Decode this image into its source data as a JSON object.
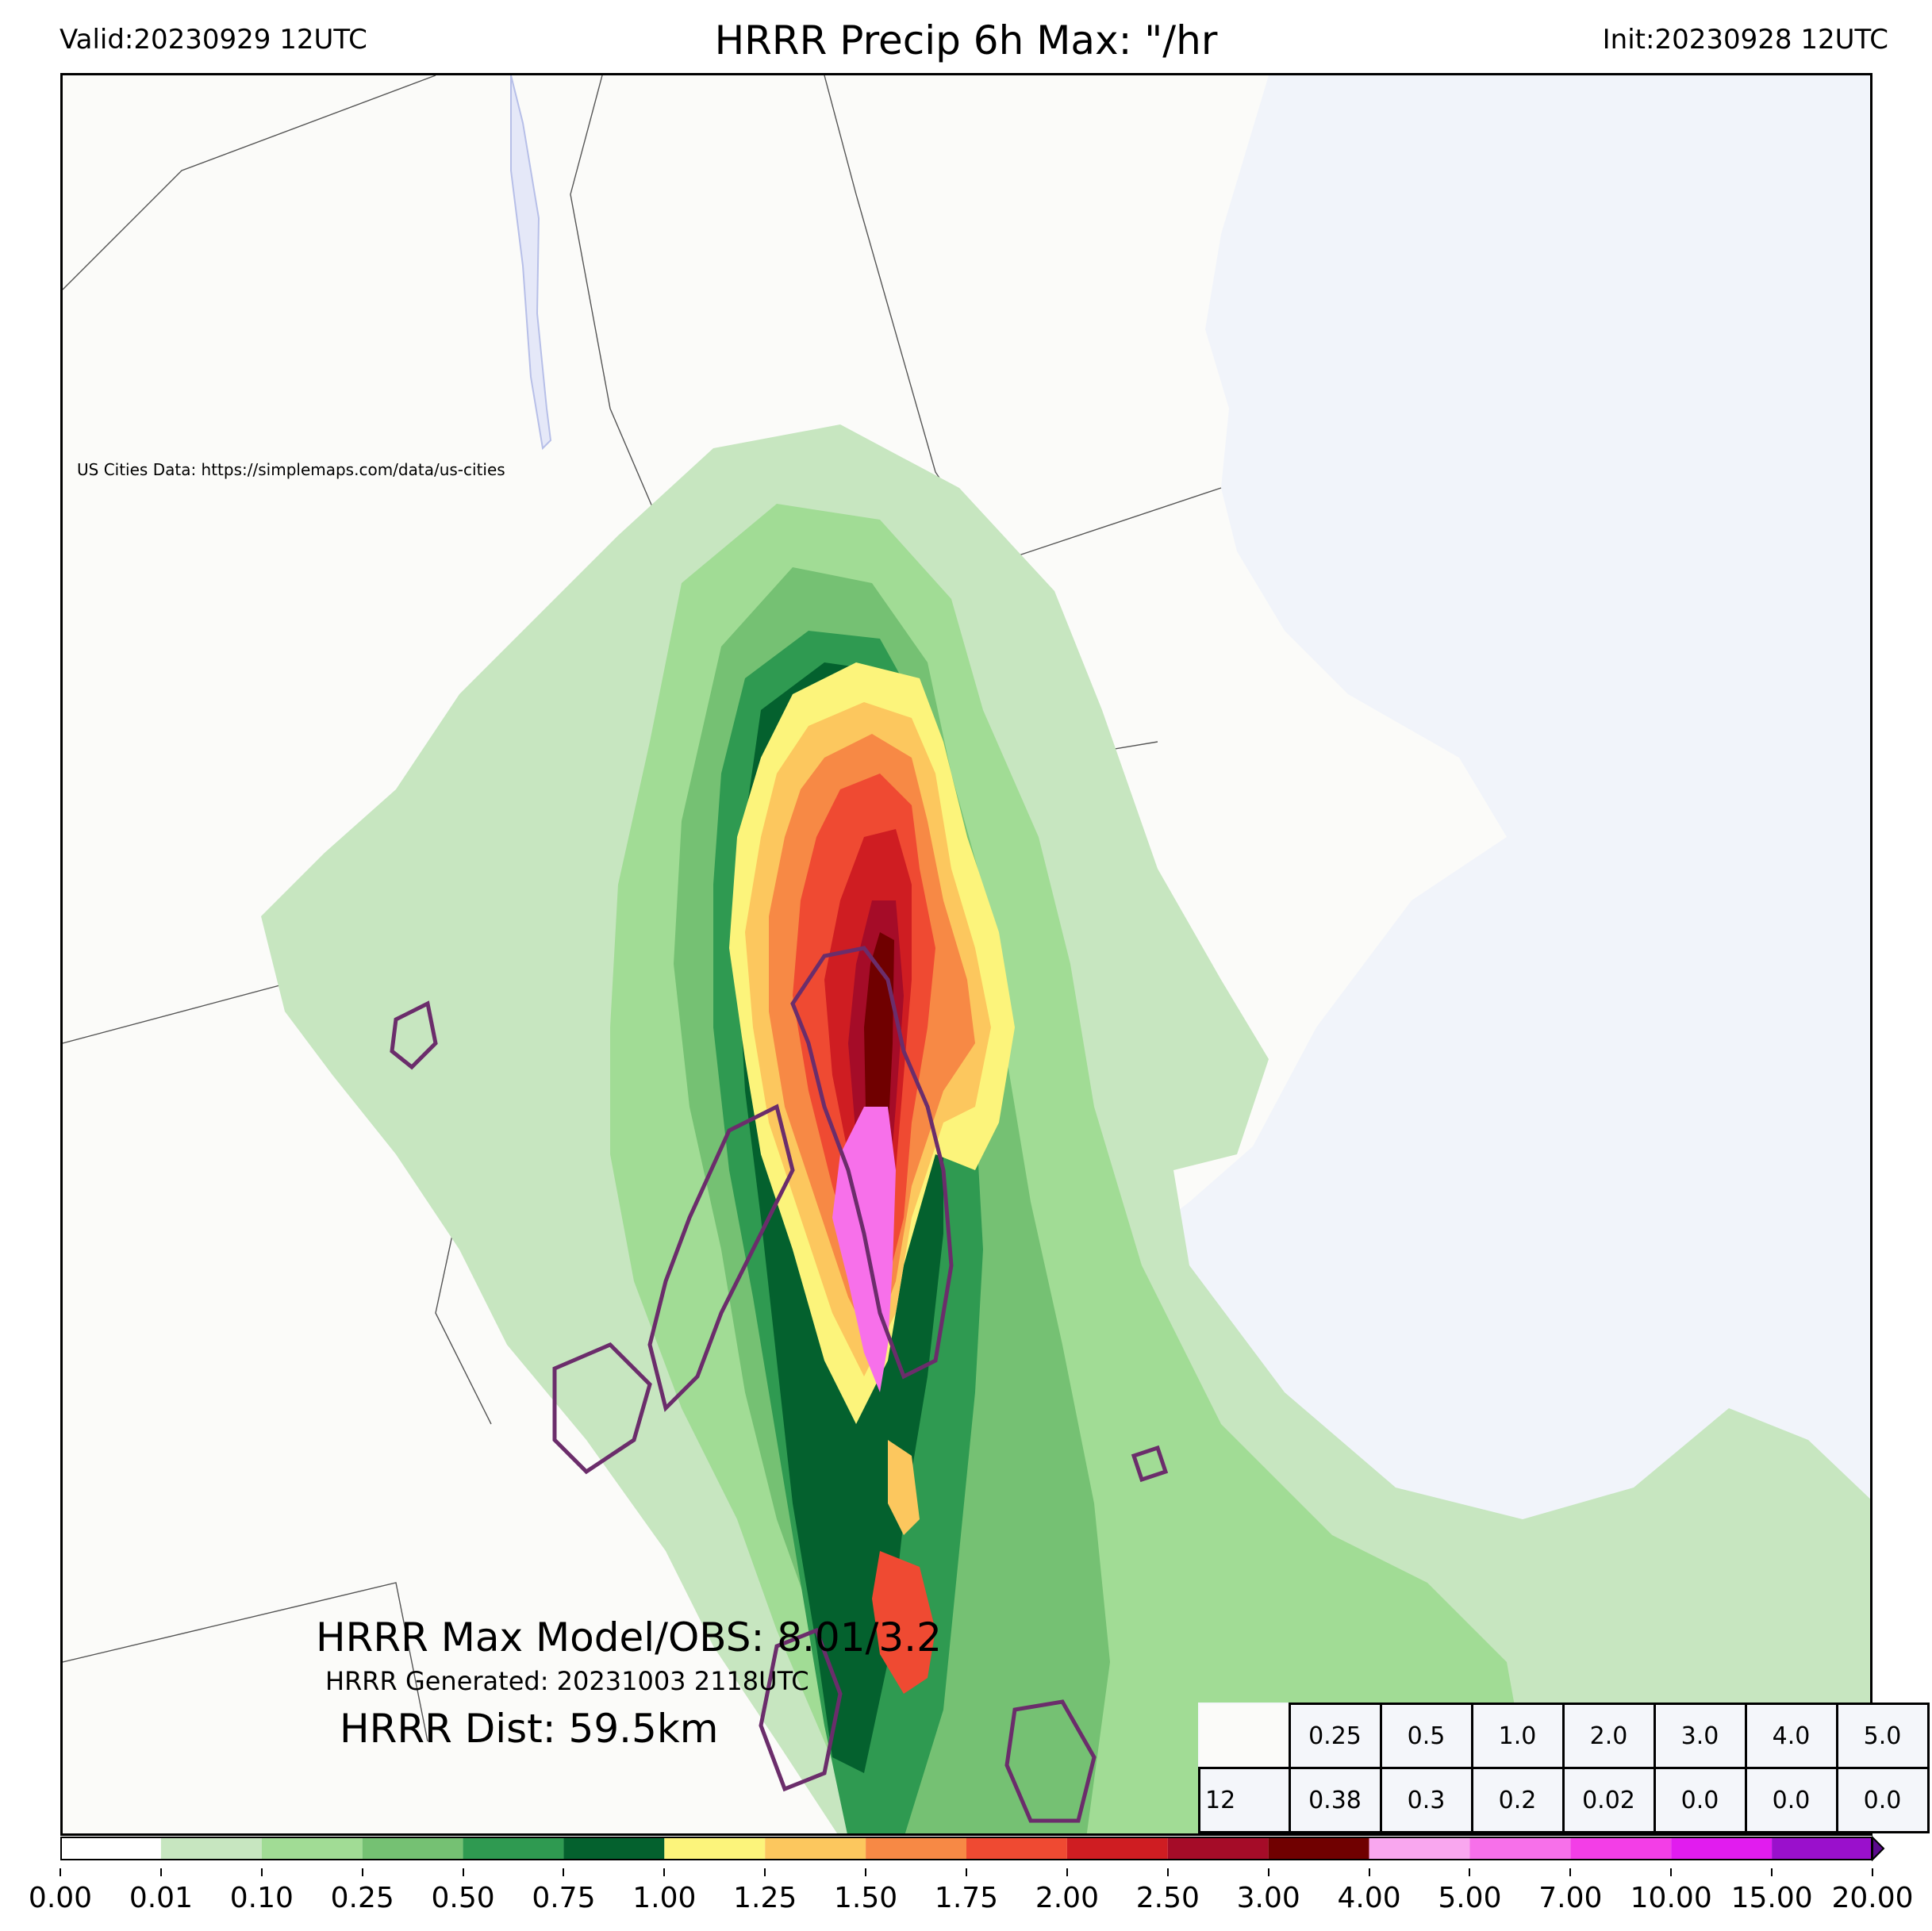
{
  "header": {
    "valid": "Valid:20230929 12UTC",
    "title": "HRRR Precip 6h Max: \"/hr",
    "init": "Init:20230928 12UTC"
  },
  "map": {
    "credit": "US Cities Data: https://simplemaps.com/data/us-cities",
    "land_color": "#fbfbf9",
    "water_color": "#f1f4fa",
    "obs_contour_color": "#6b2d6b"
  },
  "stats": {
    "max_line": "HRRR Max Model/OBS: 8.01/3.2",
    "generated_line": "HRRR Generated: 20231003 2118UTC",
    "dist_line": "HRRR Dist: 59.5km"
  },
  "threshold_table": {
    "row1": [
      "0.25",
      "0.5",
      "1.0",
      "2.0",
      "3.0",
      "4.0",
      "5.0"
    ],
    "row2": [
      "12",
      "0.38",
      "0.3",
      "0.2",
      "0.02",
      "0.0",
      "0.0",
      "0.0"
    ]
  },
  "colorbar": {
    "ticks": [
      "0.00",
      "0.01",
      "0.10",
      "0.25",
      "0.50",
      "0.75",
      "1.00",
      "1.25",
      "1.50",
      "1.75",
      "2.00",
      "2.50",
      "3.00",
      "4.00",
      "5.00",
      "7.00",
      "10.00",
      "15.00",
      "20.00"
    ],
    "colors": [
      "#ffffff",
      "#c7e6c0",
      "#a1dc95",
      "#75c173",
      "#2f9a51",
      "#04612e",
      "#fcf47b",
      "#fcc75e",
      "#f78945",
      "#ef4a32",
      "#cf1d22",
      "#a50c28",
      "#700000",
      "#f9a7ef",
      "#f770ea",
      "#f33ee7",
      "#e11cef",
      "#9a10cc"
    ],
    "extend_color": "#5a0a8c"
  }
}
